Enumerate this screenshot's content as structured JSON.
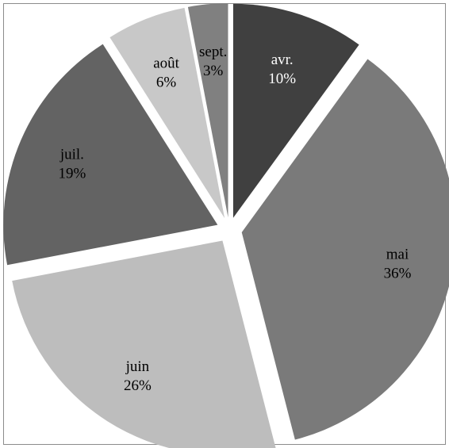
{
  "chart_data": {
    "type": "pie",
    "exploded": true,
    "start_angle_deg": 0,
    "direction": "clockwise",
    "legend": "none",
    "slices": [
      {
        "label": "avr.",
        "pct_label": "10%",
        "value": 10,
        "color": "#404040",
        "text_color": "#ffffff"
      },
      {
        "label": "mai",
        "pct_label": "36%",
        "value": 36,
        "color": "#7a7a7a",
        "text_color": "#000000"
      },
      {
        "label": "juin",
        "pct_label": "26%",
        "value": 26,
        "color": "#bdbdbd",
        "text_color": "#000000"
      },
      {
        "label": "juil.",
        "pct_label": "19%",
        "value": 19,
        "color": "#636363",
        "text_color": "#000000"
      },
      {
        "label": "août",
        "pct_label": "6%",
        "value": 6,
        "color": "#c8c8c8",
        "text_color": "#000000"
      },
      {
        "label": "sept.",
        "pct_label": "3%",
        "value": 3,
        "color": "#808080",
        "text_color": "#000000"
      }
    ]
  }
}
